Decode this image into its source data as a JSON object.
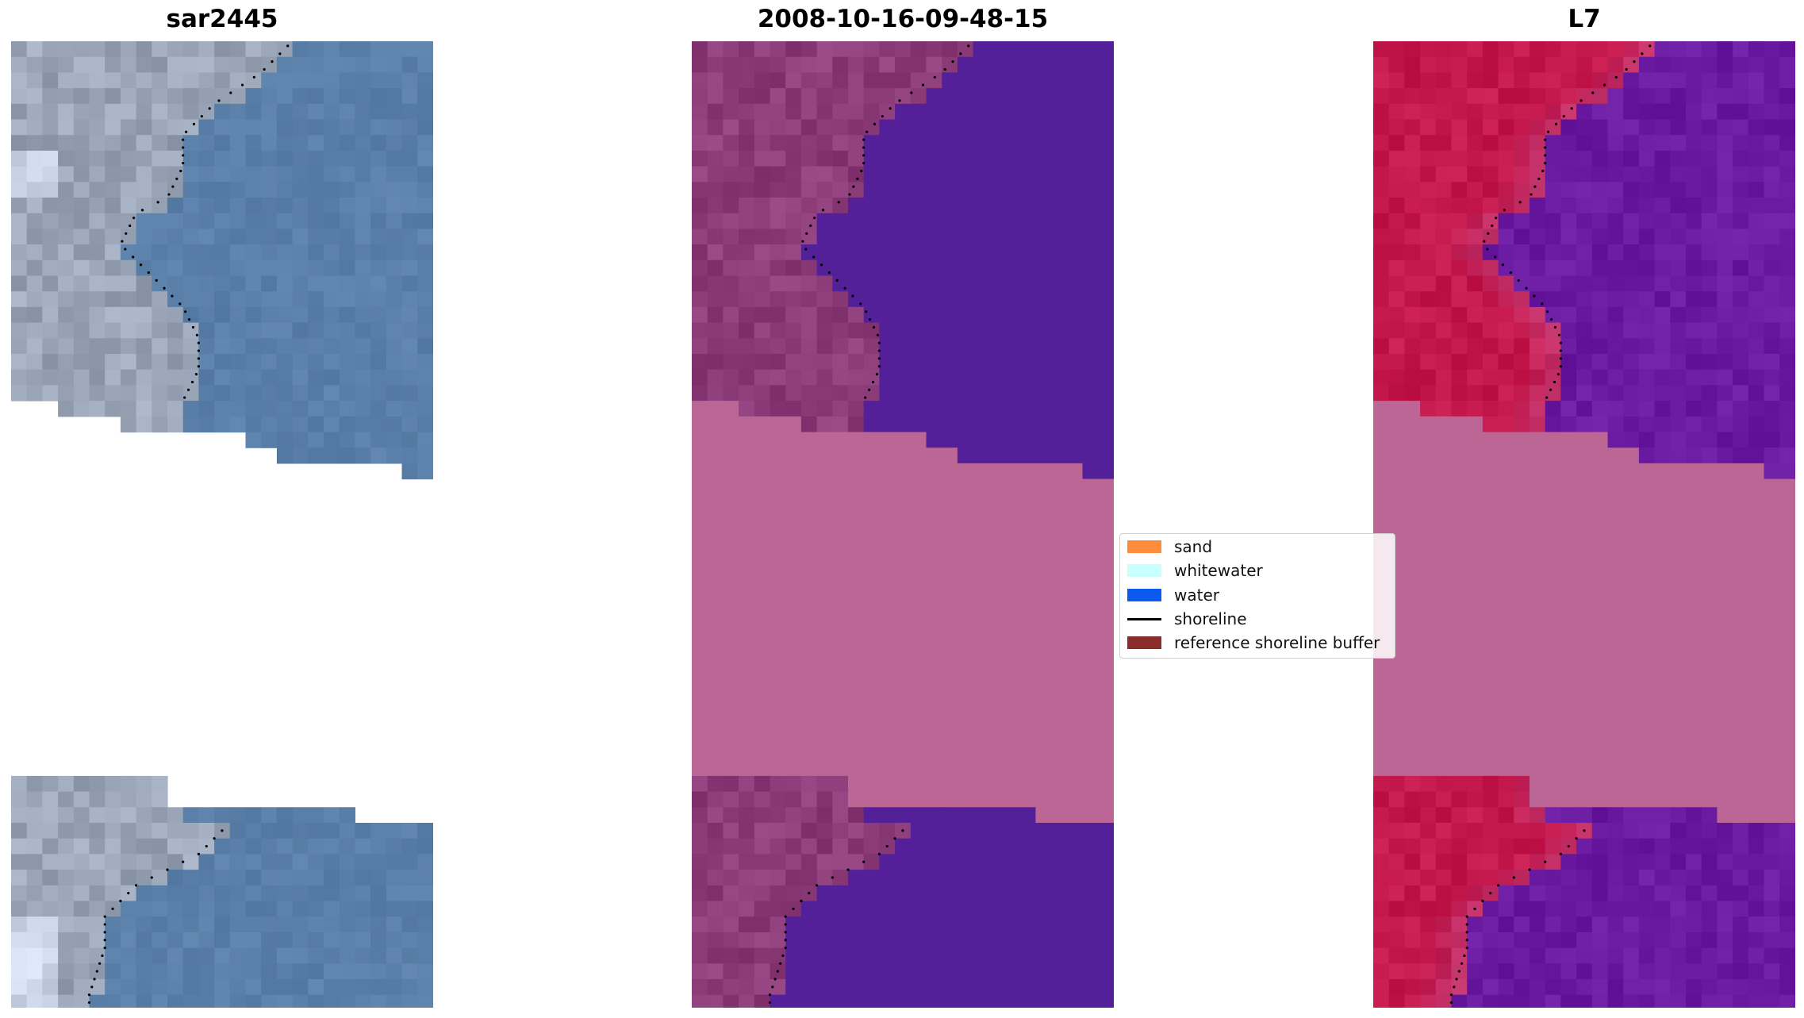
{
  "panels": [
    {
      "id": "rgb",
      "title": "sar2445"
    },
    {
      "id": "classified",
      "title": "2008-10-16-09-48-15"
    },
    {
      "id": "index",
      "title": "L7"
    }
  ],
  "legend": {
    "items": [
      {
        "label": "sand",
        "kind": "patch",
        "color": "#ff8c3c"
      },
      {
        "label": "whitewater",
        "kind": "patch",
        "color": "#c8ffff"
      },
      {
        "label": "water",
        "kind": "patch",
        "color": "#0a5af0"
      },
      {
        "label": "shoreline",
        "kind": "line",
        "color": "#000000"
      },
      {
        "label": "reference shoreline buffer",
        "kind": "patch",
        "color": "#8b2c2c"
      }
    ]
  },
  "colors": {
    "rgb_water": "#5a7fa8",
    "rgb_land": "#9aa6b8",
    "class_water": "#54209a",
    "class_land": "#8c3c78",
    "class_buffer": "#bb6694",
    "index_water": "#6a1aa0",
    "index_land": "#c4184c",
    "index_buffer": "#bb6694"
  }
}
